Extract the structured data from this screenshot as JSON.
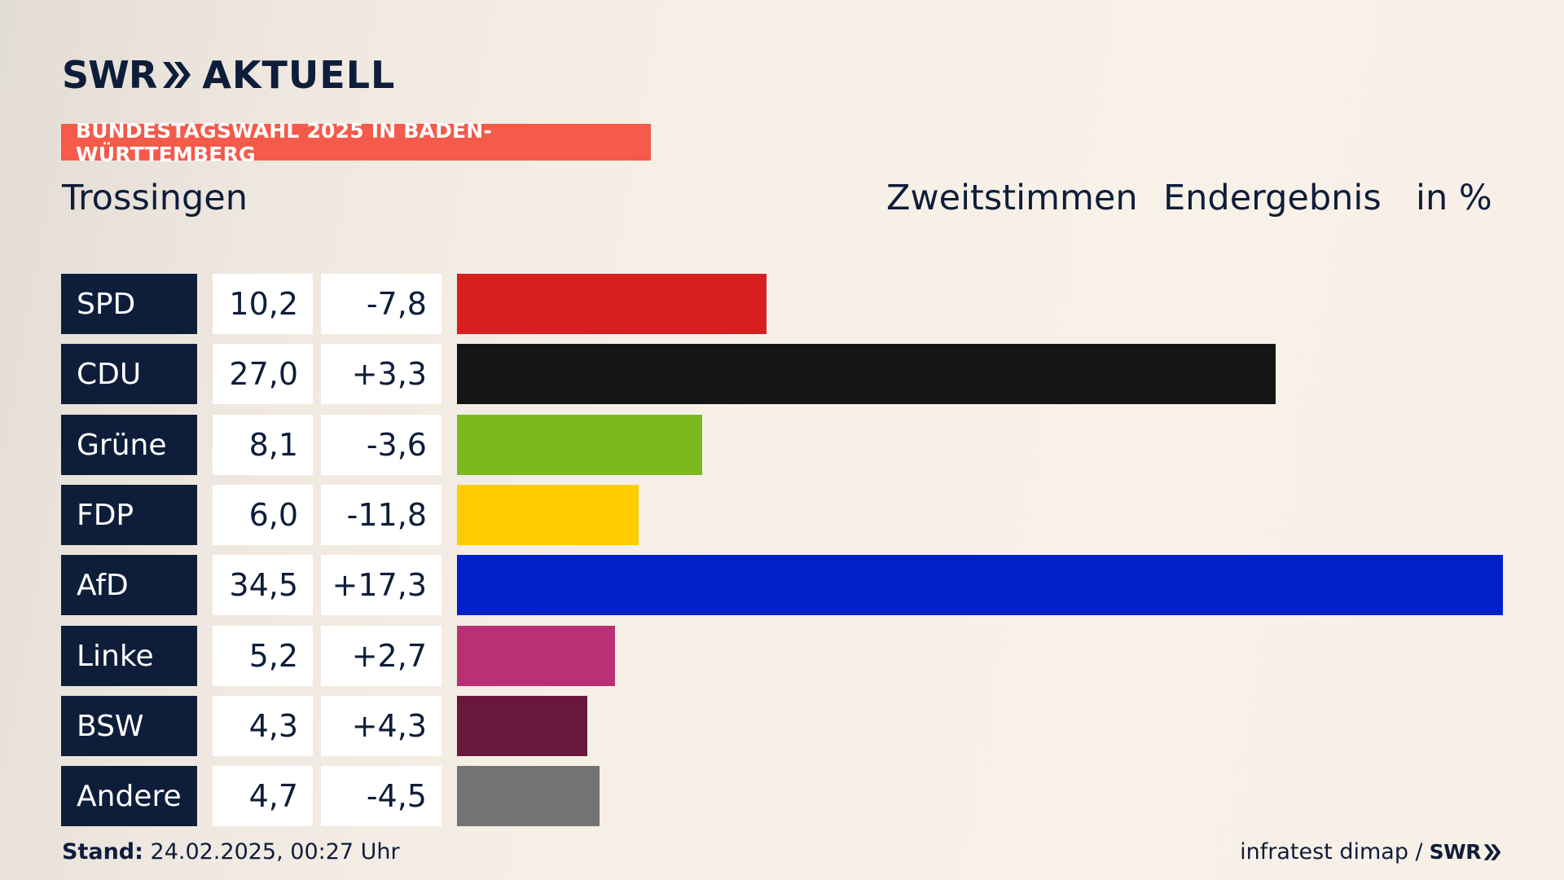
{
  "brand": {
    "logo_swr": "SWR",
    "logo_aktuell": "AKTUELL",
    "logo_arrows_icon": "double-chevron-right"
  },
  "banner": "BUNDESTAGSWAHL 2025 IN BADEN-WÜRTTEMBERG",
  "location": "Trossingen",
  "header": {
    "vote_type": "Zweitstimmen",
    "result_type": "Endergebnis",
    "unit": "in %"
  },
  "chart_data": {
    "type": "bar",
    "orientation": "horizontal",
    "categories": [
      "SPD",
      "CDU",
      "Grüne",
      "FDP",
      "AfD",
      "Linke",
      "BSW",
      "Andere"
    ],
    "values": [
      10.2,
      27.0,
      8.1,
      6.0,
      34.5,
      5.2,
      4.3,
      4.7
    ],
    "value_labels": [
      "10,2",
      "27,0",
      "8,1",
      "6,0",
      "34,5",
      "5,2",
      "4,3",
      "4,7"
    ],
    "diff_labels": [
      "-7,8",
      "+3,3",
      "-3,6",
      "-11,8",
      "+17,3",
      "+2,7",
      "+4,3",
      "-4,5"
    ],
    "colors": [
      "#d71f1f",
      "#151515",
      "#7aba1c",
      "#ffcc00",
      "#0021c8",
      "#bb2f75",
      "#6a173c",
      "#737373"
    ],
    "xlim": [
      0,
      34.5
    ]
  },
  "footer": {
    "stand_label": "Stand:",
    "stand_value": "24.02.2025, 00:27 Uhr",
    "source": "infratest dimap /",
    "source_brand": "SWR"
  }
}
